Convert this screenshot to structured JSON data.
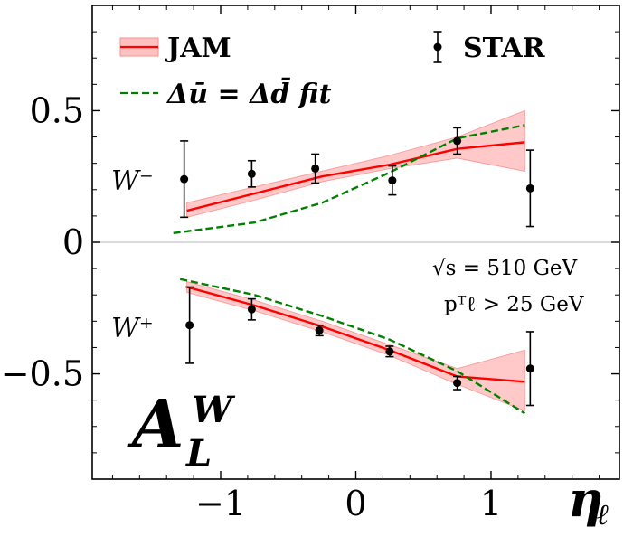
{
  "chart_data": {
    "type": "line",
    "xlim": [
      -1.95,
      1.95
    ],
    "ylim": [
      -0.9,
      0.9
    ],
    "xticks": [
      -1,
      0,
      1
    ],
    "xtick_labels": [
      "−1",
      "0",
      "1"
    ],
    "yticks": [
      -0.5,
      0,
      0.5
    ],
    "ytick_labels": [
      "−0.5",
      "0",
      "0.5"
    ],
    "xlabel_main": "η",
    "xlabel_sub": "ℓ",
    "zero_line": true,
    "grid": false,
    "legend_position": "top",
    "legend": [
      {
        "label": "JAM",
        "style": "red line with band"
      },
      {
        "label": "STAR",
        "style": "black points with error bars"
      },
      {
        "label": "Δū = Δd̄ fit",
        "style": "green dashed"
      }
    ],
    "annotations": {
      "w_minus": "W⁻",
      "w_plus": "W⁺",
      "sqrt_s": "√s = 510 GeV",
      "pt_cut": "pᵀℓ > 25 GeV",
      "big_label": "A",
      "big_label_sup": "W",
      "big_label_sub": "L"
    },
    "series": [
      {
        "name": "JAM W⁻",
        "color": "#ff0000",
        "x": [
          -1.25,
          -0.75,
          -0.25,
          0.25,
          0.75,
          1.25
        ],
        "y": [
          0.12,
          0.185,
          0.25,
          0.295,
          0.355,
          0.38
        ],
        "band_low": [
          0.095,
          0.16,
          0.23,
          0.28,
          0.32,
          0.27
        ],
        "band_high": [
          0.15,
          0.21,
          0.27,
          0.33,
          0.4,
          0.5
        ]
      },
      {
        "name": "JAM W⁺",
        "color": "#ff0000",
        "x": [
          -1.25,
          -0.75,
          -0.25,
          0.25,
          0.75,
          1.25
        ],
        "y": [
          -0.17,
          -0.24,
          -0.32,
          -0.41,
          -0.51,
          -0.53
        ],
        "band_low": [
          -0.19,
          -0.26,
          -0.34,
          -0.43,
          -0.54,
          -0.64
        ],
        "band_high": [
          -0.15,
          -0.22,
          -0.3,
          -0.39,
          -0.48,
          -0.41
        ]
      },
      {
        "name": "Δū = Δd̄ fit W⁻",
        "color": "#008000",
        "dashed": true,
        "x": [
          -1.35,
          -0.75,
          -0.25,
          0.25,
          0.75,
          1.25
        ],
        "y": [
          0.035,
          0.075,
          0.15,
          0.265,
          0.395,
          0.445
        ]
      },
      {
        "name": "Δū = Δd̄ fit W⁺",
        "color": "#008000",
        "dashed": true,
        "x": [
          -1.3,
          -0.75,
          -0.25,
          0.25,
          0.75,
          1.25
        ],
        "y": [
          -0.14,
          -0.2,
          -0.28,
          -0.37,
          -0.49,
          -0.65
        ]
      },
      {
        "name": "STAR W⁻",
        "color": "#000000",
        "x": [
          -1.27,
          -0.77,
          -0.3,
          0.27,
          0.75,
          1.29
        ],
        "y": [
          0.24,
          0.26,
          0.28,
          0.235,
          0.385,
          0.205
        ],
        "err": [
          0.145,
          0.05,
          0.055,
          0.055,
          0.05,
          0.145
        ]
      },
      {
        "name": "STAR W⁺",
        "color": "#000000",
        "x": [
          -1.23,
          -0.77,
          -0.27,
          0.25,
          0.75,
          1.29
        ],
        "y": [
          -0.315,
          -0.255,
          -0.335,
          -0.415,
          -0.535,
          -0.48
        ],
        "err": [
          0.145,
          0.04,
          0.02,
          0.02,
          0.025,
          0.14
        ]
      }
    ]
  }
}
